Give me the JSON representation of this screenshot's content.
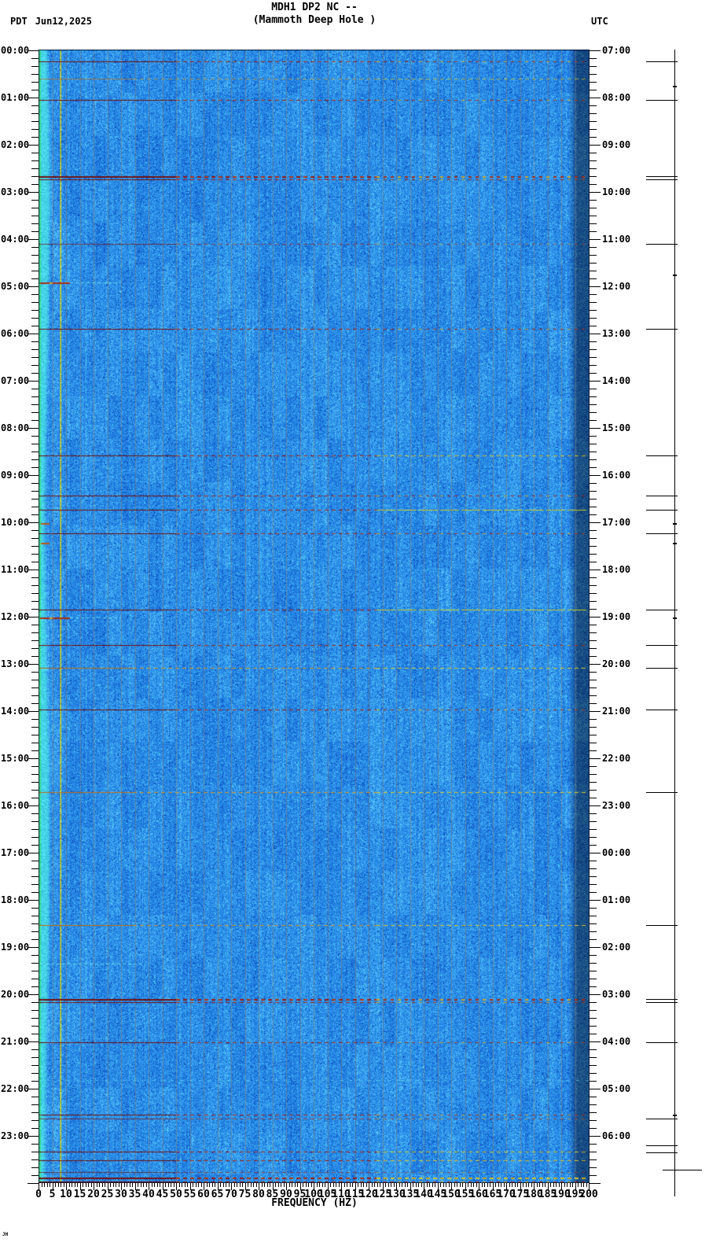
{
  "header": {
    "tz_left": "PDT",
    "date": "Jun12,2025",
    "title_line1": "MDH1 DP2 NC --",
    "title_line2": "(Mammoth Deep Hole )",
    "tz_right": "UTC"
  },
  "x_axis": {
    "label": "FREQUENCY (HZ)",
    "tick_values": [
      0,
      5,
      10,
      15,
      20,
      25,
      30,
      35,
      40,
      45,
      50,
      55,
      60,
      65,
      70,
      75,
      80,
      85,
      90,
      95,
      100,
      105,
      110,
      115,
      120,
      125,
      130,
      135,
      140,
      145,
      150,
      155,
      160,
      165,
      170,
      175,
      180,
      185,
      190,
      195,
      200
    ]
  },
  "left_axis_labels": [
    "00:00",
    "01:00",
    "02:00",
    "03:00",
    "04:00",
    "05:00",
    "06:00",
    "07:00",
    "08:00",
    "09:00",
    "10:00",
    "11:00",
    "12:00",
    "13:00",
    "14:00",
    "15:00",
    "16:00",
    "17:00",
    "18:00",
    "19:00",
    "20:00",
    "21:00",
    "22:00",
    "23:00"
  ],
  "right_axis_labels": [
    "07:00",
    "08:00",
    "09:00",
    "10:00",
    "11:00",
    "12:00",
    "13:00",
    "14:00",
    "15:00",
    "16:00",
    "17:00",
    "18:00",
    "19:00",
    "20:00",
    "21:00",
    "22:00",
    "23:00",
    "00:00",
    "01:00",
    "02:00",
    "03:00",
    "04:00",
    "05:00",
    "06:00"
  ],
  "watermark": "JH",
  "palette": {
    "background": "#ffffff",
    "text": "#000000",
    "base_blue": "#1f7fe0",
    "dark_blue": "#0a46be",
    "light_blue": "#37a0f2",
    "cyan_speck": "#50dcf5",
    "low_band_cyan": "#45d4e8",
    "low_band_green": "#3cc878",
    "tone_yellow": "#d4d81f",
    "gridline": "#87796c",
    "event_dark_red": "#701010",
    "event_red": "#9a1a10",
    "event_orange": "#bd7014",
    "event_yellow": "#c6cc22",
    "event_cyan": "#64dcea",
    "right_strip_dim": "#0a3f9a"
  },
  "chart_data": {
    "type": "heatmap",
    "title": "MDH1 DP2 NC -- (Mammoth Deep Hole )",
    "xlabel": "FREQUENCY (HZ)",
    "x_range_hz": [
      0,
      200
    ],
    "x_major_tick_step_hz": 5,
    "x_minor_tick_step_hz": 1,
    "y_left_timezone": "PDT",
    "y_right_timezone": "UTC",
    "date": "Jun12,2025",
    "y_range_hours_pdt": [
      "00:00",
      "24:00"
    ],
    "y_minor_tick_minutes": 10,
    "utc_offset_hours": 7,
    "grid": "vertical gray lines every 5 Hz",
    "background_texture": "broadband blue noise field",
    "low_freq_bright_band_hz": [
      0,
      3
    ],
    "persistent_tone_hz": 8,
    "dim_strip_hz": [
      196,
      200
    ],
    "events": [
      {
        "t": "00:14",
        "kind": "dark",
        "right": "red"
      },
      {
        "t": "00:36",
        "kind": "orange",
        "faint": true,
        "right": "yellow"
      },
      {
        "t": "01:03",
        "kind": "dark",
        "right": "red"
      },
      {
        "t": "02:40",
        "kind": "dark",
        "right": "red",
        "w": 2
      },
      {
        "t": "02:44",
        "kind": "dark",
        "right": "red"
      },
      {
        "t": "04:06",
        "kind": "dark",
        "faint": true,
        "right": "red"
      },
      {
        "t": "04:55",
        "kind": "short"
      },
      {
        "t": "05:54",
        "kind": "dark",
        "right": "red"
      },
      {
        "t": "08:35",
        "kind": "dark",
        "right": "yellow"
      },
      {
        "t": "09:26",
        "kind": "dark",
        "right": "red"
      },
      {
        "t": "09:44",
        "kind": "dark",
        "right": "yellow-solid"
      },
      {
        "t": "10:01",
        "kind": "dot"
      },
      {
        "t": "10:14",
        "kind": "dark",
        "right": "red"
      },
      {
        "t": "10:26",
        "kind": "dot"
      },
      {
        "t": "11:51",
        "kind": "dark",
        "right": "yellow-solid"
      },
      {
        "t": "12:01",
        "kind": "short"
      },
      {
        "t": "12:36",
        "kind": "dark",
        "right": "red"
      },
      {
        "t": "13:05",
        "kind": "orange",
        "right": "yellow"
      },
      {
        "t": "13:58",
        "kind": "dark",
        "right": "red"
      },
      {
        "t": "15:43",
        "kind": "orange",
        "right": "yellow"
      },
      {
        "t": "18:32",
        "kind": "orange",
        "right": "yellow"
      },
      {
        "t": "19:21",
        "kind": "cyan-left"
      },
      {
        "t": "20:06",
        "kind": "dark",
        "right": "red",
        "w": 2
      },
      {
        "t": "20:10",
        "kind": "dark",
        "right": "red"
      },
      {
        "t": "21:01",
        "kind": "dark",
        "right": "red"
      },
      {
        "t": "21:49",
        "kind": "cyan-full"
      },
      {
        "t": "22:33",
        "kind": "dark",
        "right": "red"
      },
      {
        "t": "22:38",
        "kind": "dark",
        "right": "red",
        "faint": true
      },
      {
        "t": "23:20",
        "kind": "dark",
        "right": "yellow"
      },
      {
        "t": "23:31",
        "kind": "dark",
        "right": "yellow"
      },
      {
        "t": "23:46",
        "kind": "dark",
        "faint": true,
        "right": "red"
      },
      {
        "t": "23:53",
        "kind": "dark",
        "right": "yellow",
        "w": 2
      },
      {
        "t": "23:58",
        "kind": "dark",
        "right": "red",
        "w": 2
      }
    ],
    "right_margin_marks": {
      "dash_times_pdt": [
        "00:14",
        "01:03",
        "02:40",
        "02:44",
        "04:06",
        "05:54",
        "08:35",
        "09:26",
        "09:44",
        "10:14",
        "11:51",
        "12:36",
        "13:05",
        "13:58",
        "15:43",
        "18:32",
        "20:06",
        "20:10",
        "21:01",
        "22:38",
        "23:12",
        "23:21"
      ],
      "dot_times_pdt": [
        "00:45",
        "04:45",
        "10:01",
        "10:26",
        "12:01",
        "22:33"
      ],
      "cross_time_pdt": "23:43"
    }
  }
}
